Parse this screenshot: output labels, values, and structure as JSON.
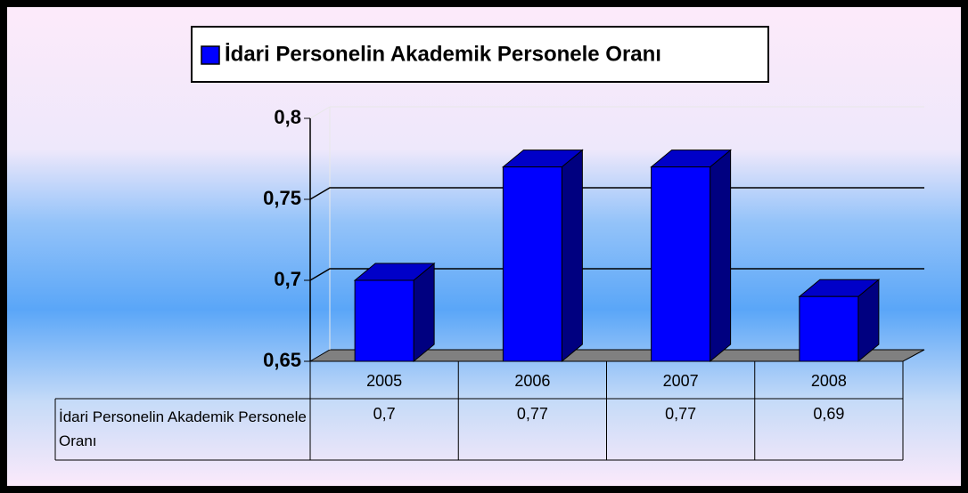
{
  "chart_data": {
    "type": "bar3d",
    "categories": [
      "2005",
      "2006",
      "2007",
      "2008"
    ],
    "series": [
      {
        "name": "İdari Personelin Akademik Personele Oranı",
        "color": "#0000ff",
        "values": [
          0.7,
          0.77,
          0.77,
          0.69
        ],
        "value_labels": [
          "0,7",
          "0,77",
          "0,77",
          "0,69"
        ]
      }
    ],
    "ylim": [
      0.65,
      0.8
    ],
    "yticks": [
      {
        "value": 0.65,
        "label": "0,65"
      },
      {
        "value": 0.7,
        "label": "0,7"
      },
      {
        "value": 0.75,
        "label": "0,75"
      },
      {
        "value": 0.8,
        "label": "0,8"
      }
    ],
    "grid": true,
    "legend": "top",
    "data_table": true
  }
}
